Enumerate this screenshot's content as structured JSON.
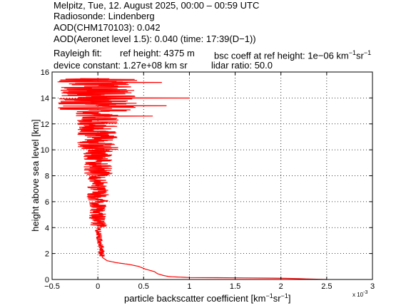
{
  "header": {
    "line1": "Melpitz, Tue, 12. August 2025, 00:00 – 00:59 UTC",
    "line2": "Radiosonde: Lindenberg",
    "line3": "AOD(CHM170103): 0.042",
    "line4": "AOD(Aeronet level 1.5): 0.040   (time: 17:39(D−1))",
    "rayleigh_label": "Rayleigh fit:",
    "ref_height": "ref height: 4375 m",
    "bsc_coeff_prefix": "bsc coeff at ref height: 1e−06 km",
    "device_constant": "device constant: 1.27e+08 km sr",
    "lidar_ratio": "lidar ratio: 50.0"
  },
  "chart_data": {
    "type": "line",
    "xlabel": "particle backscatter coefficient [km",
    "ylabel": "height above sea level [km]",
    "x_exponent_label": "x 10",
    "x_exponent": "-3",
    "xlim": [
      -0.5,
      3
    ],
    "ylim": [
      0,
      16
    ],
    "xticks": [
      "−0.5",
      "0",
      "0.5",
      "1",
      "1.5",
      "2",
      "2.5",
      "3"
    ],
    "yticks": [
      "0",
      "2",
      "4",
      "6",
      "8",
      "10",
      "12",
      "14",
      "16"
    ],
    "grid": true,
    "series_color": "#ff0000",
    "profile": [
      {
        "h": 0.0,
        "x": 2.5
      },
      {
        "h": 0.1,
        "x": 2.0
      },
      {
        "h": 0.15,
        "x": 1.0
      },
      {
        "h": 0.22,
        "x": 0.78
      },
      {
        "h": 0.3,
        "x": 0.72
      },
      {
        "h": 0.45,
        "x": 0.65
      },
      {
        "h": 0.6,
        "x": 0.62
      },
      {
        "h": 0.8,
        "x": 0.52
      },
      {
        "h": 1.0,
        "x": 0.45
      },
      {
        "h": 1.15,
        "x": 0.35
      },
      {
        "h": 1.3,
        "x": 0.2
      },
      {
        "h": 1.45,
        "x": 0.1
      },
      {
        "h": 1.7,
        "x": 0.05
      },
      {
        "h": 2.0,
        "x": 0.04
      },
      {
        "h": 3.0,
        "x": 0.02
      },
      {
        "h": 4.0,
        "x": 0.0
      },
      {
        "h": 6.0,
        "x": 0.0
      },
      {
        "h": 8.0,
        "x": 0.0
      },
      {
        "h": 10.0,
        "x": 0.0
      },
      {
        "h": 12.0,
        "x": 0.0
      },
      {
        "h": 13.0,
        "x": 0.0
      },
      {
        "h": 15.5,
        "x": 0.0
      }
    ],
    "noise_bands": [
      {
        "h_from": 1.8,
        "h_to": 4.0,
        "amp": 0.04
      },
      {
        "h_from": 4.0,
        "h_to": 6.0,
        "amp": 0.12
      },
      {
        "h_from": 6.0,
        "h_to": 8.0,
        "amp": 0.15
      },
      {
        "h_from": 8.0,
        "h_to": 10.0,
        "amp": 0.2
      },
      {
        "h_from": 10.0,
        "h_to": 12.0,
        "amp": 0.28
      },
      {
        "h_from": 12.0,
        "h_to": 13.0,
        "amp": 0.3
      },
      {
        "h_from": 13.0,
        "h_to": 15.5,
        "amp": 0.55
      }
    ],
    "spikes": [
      {
        "h": 14.0,
        "x": 1.0
      },
      {
        "h": 15.2,
        "x": 0.7
      },
      {
        "h": 14.8,
        "x": -0.4
      },
      {
        "h": 13.4,
        "x": 0.75
      },
      {
        "h": 12.6,
        "x": 0.6
      }
    ]
  }
}
